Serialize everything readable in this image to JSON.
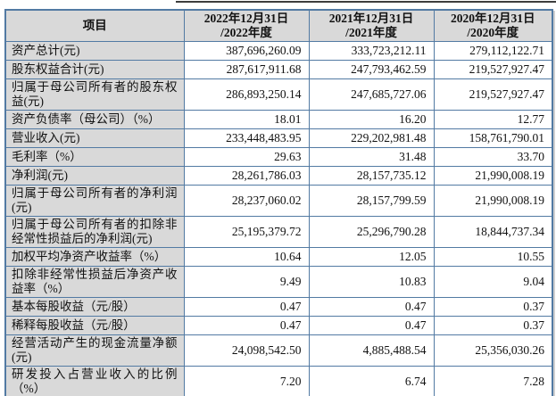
{
  "table": {
    "header": {
      "item_label": "项目",
      "periods": [
        "2022年12月31日\n/2022年度",
        "2021年12月31日\n/2021年度",
        "2020年12月31日\n/2020年度"
      ]
    },
    "rows": [
      {
        "label": "资产总计(元)",
        "values": [
          "387,696,260.09",
          "333,723,212.11",
          "279,112,122.71"
        ]
      },
      {
        "label": "股东权益合计(元)",
        "values": [
          "287,617,911.68",
          "247,793,462.59",
          "219,527,927.47"
        ]
      },
      {
        "label": "归属于母公司所有者的股东权益(元)",
        "values": [
          "286,893,250.14",
          "247,685,727.06",
          "219,527,927.47"
        ]
      },
      {
        "label": "资产负债率（母公司）（%）",
        "values": [
          "18.01",
          "16.20",
          "12.77"
        ]
      },
      {
        "label": "营业收入(元)",
        "values": [
          "233,448,483.95",
          "229,202,981.48",
          "158,761,790.01"
        ]
      },
      {
        "label": "毛利率（%）",
        "values": [
          "29.63",
          "31.48",
          "33.70"
        ]
      },
      {
        "label": "净利润(元)",
        "values": [
          "28,261,786.03",
          "28,157,735.12",
          "21,990,008.19"
        ]
      },
      {
        "label": "归属于母公司所有者的净利润(元)",
        "values": [
          "28,237,060.02",
          "28,157,799.59",
          "21,990,008.19"
        ]
      },
      {
        "label": "归属于母公司所有者的扣除非经常性损益后的净利润(元)",
        "values": [
          "25,195,379.72",
          "25,296,790.28",
          "18,844,737.34"
        ]
      },
      {
        "label": "加权平均净资产收益率（%）",
        "values": [
          "10.64",
          "12.05",
          "10.55"
        ]
      },
      {
        "label": "扣除非经常性损益后净资产收益率（%）",
        "values": [
          "9.49",
          "10.83",
          "9.04"
        ]
      },
      {
        "label": "基本每股收益（元/股）",
        "values": [
          "0.47",
          "0.47",
          "0.37"
        ]
      },
      {
        "label": "稀释每股收益（元/股）",
        "values": [
          "0.47",
          "0.47",
          "0.37"
        ]
      },
      {
        "label": "经营活动产生的现金流量净额(元)",
        "values": [
          "24,098,542.50",
          "4,885,488.54",
          "25,356,030.26"
        ]
      },
      {
        "label": "研发投入占营业收入的比例（%）",
        "values": [
          "7.20",
          "6.74",
          "7.28"
        ]
      }
    ],
    "colors": {
      "border": "#527aa3",
      "header_bg": "#d9d9d9",
      "label_bg": "#d9d9d9",
      "top_rule": "#3d3d3d"
    }
  }
}
